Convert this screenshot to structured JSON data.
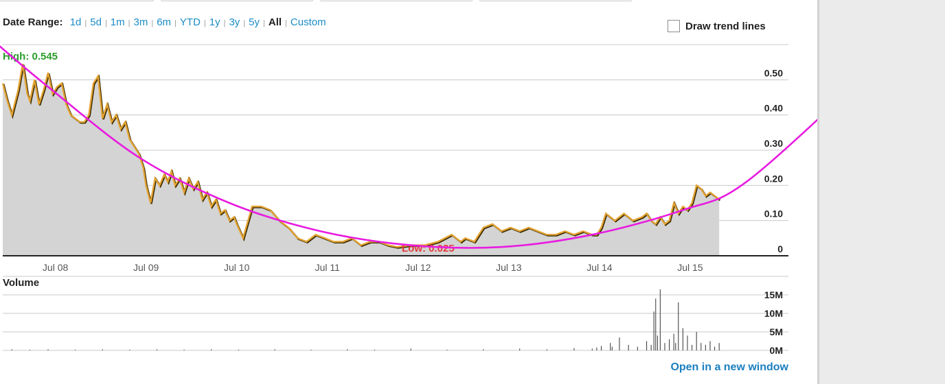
{
  "toolbar": {
    "date_range_label": "Date Range:",
    "ranges": [
      "1d",
      "5d",
      "1m",
      "3m",
      "6m",
      "YTD",
      "1y",
      "3y",
      "5y",
      "All",
      "Custom"
    ],
    "active_range": "All",
    "trend_lines_label": "Draw trend lines",
    "trend_lines_checked": false
  },
  "links": {
    "open_new_window": "Open in a new window"
  },
  "colors": {
    "price_line": "#e3a332",
    "area_fill": "#d4d4d4",
    "trend_line": "#e81be0",
    "high_text": "#2a9d2a",
    "low_text": "#e23b3b",
    "link": "#1a8cc6"
  },
  "chart_data": [
    {
      "type": "area",
      "high_label": "High: 0.545",
      "low_label": "Low: 0.025",
      "y_ticks": [
        "0",
        "0.10",
        "0.20",
        "0.30",
        "0.40",
        "0.50"
      ],
      "ylim": [
        0,
        0.6
      ],
      "x_ticks": [
        "Jul 08",
        "Jul 09",
        "Jul 10",
        "Jul 11",
        "Jul 12",
        "Jul 13",
        "Jul 14",
        "Jul 15"
      ],
      "x_tick_years": [
        2008.58,
        2009.58,
        2010.58,
        2011.58,
        2012.58,
        2013.58,
        2014.58,
        2015.58
      ],
      "xlim": [
        2008.0,
        2016.3
      ],
      "grid": true,
      "x": [
        2008.0,
        2008.05,
        2008.1,
        2008.17,
        2008.22,
        2008.27,
        2008.3,
        2008.35,
        2008.4,
        2008.45,
        2008.5,
        2008.55,
        2008.6,
        2008.65,
        2008.7,
        2008.75,
        2008.8,
        2008.85,
        2008.9,
        2008.95,
        2009.0,
        2009.05,
        2009.1,
        2009.15,
        2009.2,
        2009.25,
        2009.3,
        2009.35,
        2009.4,
        2009.45,
        2009.5,
        2009.55,
        2009.58,
        2009.63,
        2009.68,
        2009.73,
        2009.78,
        2009.82,
        2009.86,
        2009.9,
        2009.95,
        2010.0,
        2010.05,
        2010.1,
        2010.15,
        2010.2,
        2010.25,
        2010.3,
        2010.35,
        2010.4,
        2010.45,
        2010.5,
        2010.55,
        2010.58,
        2010.65,
        2010.75,
        2010.85,
        2010.95,
        2011.05,
        2011.15,
        2011.25,
        2011.35,
        2011.45,
        2011.55,
        2011.65,
        2011.75,
        2011.85,
        2011.95,
        2012.05,
        2012.15,
        2012.25,
        2012.35,
        2012.5,
        2012.65,
        2012.8,
        2012.95,
        2013.0,
        2013.05,
        2013.1,
        2013.2,
        2013.3,
        2013.4,
        2013.5,
        2013.6,
        2013.7,
        2013.8,
        2013.9,
        2014.0,
        2014.1,
        2014.2,
        2014.3,
        2014.4,
        2014.5,
        2014.55,
        2014.6,
        2014.65,
        2014.75,
        2014.85,
        2014.95,
        2015.05,
        2015.1,
        2015.15,
        2015.2,
        2015.25,
        2015.3,
        2015.35,
        2015.4,
        2015.45,
        2015.5,
        2015.55,
        2015.6,
        2015.65,
        2015.7,
        2015.75,
        2015.8,
        2015.85,
        2015.9
      ],
      "values": [
        0.49,
        0.44,
        0.4,
        0.47,
        0.545,
        0.46,
        0.44,
        0.5,
        0.43,
        0.47,
        0.52,
        0.46,
        0.48,
        0.49,
        0.43,
        0.4,
        0.39,
        0.38,
        0.38,
        0.4,
        0.49,
        0.51,
        0.39,
        0.43,
        0.38,
        0.4,
        0.36,
        0.38,
        0.33,
        0.31,
        0.29,
        0.25,
        0.2,
        0.15,
        0.22,
        0.2,
        0.23,
        0.21,
        0.24,
        0.2,
        0.22,
        0.18,
        0.22,
        0.19,
        0.21,
        0.16,
        0.18,
        0.14,
        0.16,
        0.12,
        0.13,
        0.1,
        0.11,
        0.09,
        0.05,
        0.14,
        0.14,
        0.13,
        0.1,
        0.08,
        0.05,
        0.04,
        0.06,
        0.05,
        0.04,
        0.04,
        0.05,
        0.03,
        0.04,
        0.04,
        0.03,
        0.025,
        0.03,
        0.03,
        0.04,
        0.06,
        0.05,
        0.04,
        0.05,
        0.04,
        0.08,
        0.09,
        0.07,
        0.08,
        0.07,
        0.08,
        0.07,
        0.06,
        0.06,
        0.07,
        0.06,
        0.07,
        0.06,
        0.06,
        0.08,
        0.12,
        0.1,
        0.12,
        0.1,
        0.11,
        0.12,
        0.1,
        0.09,
        0.11,
        0.09,
        0.1,
        0.15,
        0.12,
        0.14,
        0.13,
        0.15,
        0.2,
        0.19,
        0.17,
        0.18,
        0.17,
        0.16
      ],
      "trend_line": {
        "x": [
          2007.9,
          2008.5,
          2009.5,
          2010.5,
          2011.5,
          2012.5,
          2013.5,
          2014.5,
          2015.5,
          2016.2,
          2017.5
        ],
        "values": [
          0.61,
          0.48,
          0.28,
          0.15,
          0.07,
          0.03,
          0.025,
          0.06,
          0.13,
          0.21,
          0.51
        ]
      }
    },
    {
      "type": "bar",
      "title": "Volume",
      "y_ticks": [
        "0M",
        "5M",
        "10M",
        "15M"
      ],
      "ylim": [
        0,
        20
      ],
      "spikes_x": [
        2007.9,
        2008.1,
        2008.3,
        2008.5,
        2008.8,
        2009.1,
        2009.4,
        2009.7,
        2010.0,
        2010.3,
        2010.6,
        2011.0,
        2011.4,
        2011.8,
        2012.1,
        2012.5,
        2012.9,
        2013.3,
        2013.7,
        2014.0,
        2014.3,
        2014.5,
        2014.55,
        2014.6,
        2014.7,
        2014.72,
        2014.8,
        2014.9,
        2015.0,
        2015.1,
        2015.15,
        2015.18,
        2015.2,
        2015.22,
        2015.25,
        2015.3,
        2015.35,
        2015.4,
        2015.42,
        2015.45,
        2015.5,
        2015.55,
        2015.6,
        2015.65,
        2015.7,
        2015.75,
        2015.8,
        2015.85,
        2015.9
      ],
      "spikes_values": [
        0.2,
        0.3,
        0.2,
        0.3,
        0.2,
        0.3,
        0.2,
        0.3,
        0.2,
        0.3,
        0.2,
        0.3,
        0.2,
        0.3,
        0.2,
        0.5,
        0.2,
        0.3,
        0.5,
        0.3,
        0.6,
        0.5,
        0.8,
        1.2,
        2.0,
        1.0,
        3.5,
        1.5,
        1.0,
        2.5,
        1.5,
        10.5,
        14.0,
        4.0,
        16.5,
        2.0,
        3.0,
        4.5,
        2.0,
        13.0,
        6.0,
        4.0,
        1.5,
        5.0,
        2.0,
        1.5,
        2.5,
        1.0,
        2.0
      ]
    }
  ]
}
